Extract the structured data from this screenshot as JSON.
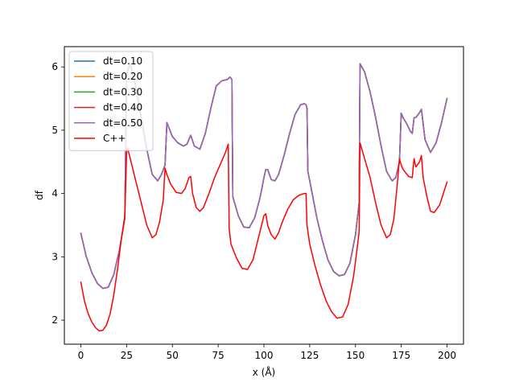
{
  "chart_data": {
    "type": "line",
    "title": "",
    "xlabel": "x (Å)",
    "ylabel": "df",
    "xlim": [
      -9,
      209
    ],
    "ylim": [
      1.62,
      6.32
    ],
    "xticks": [
      0,
      25,
      50,
      75,
      100,
      125,
      150,
      175,
      200
    ],
    "yticks": [
      2,
      3,
      4,
      5,
      6
    ],
    "grid": false,
    "legend_position": "top-left",
    "series": [
      {
        "name": "dt=0.10",
        "color": "#1f77b4",
        "x": [
          0,
          3,
          6,
          9,
          12,
          15,
          18,
          21,
          24,
          25,
          27,
          30,
          33,
          36,
          39,
          42,
          44,
          46,
          47,
          50,
          53,
          56,
          58,
          60,
          62,
          65,
          68,
          71,
          74,
          77,
          80,
          81.5,
          82.5,
          83,
          86,
          89,
          92,
          95,
          98,
          100,
          101,
          102,
          103,
          104,
          106,
          108,
          111,
          114,
          117,
          120,
          122,
          123,
          123.5,
          124,
          126,
          129,
          132,
          135,
          138,
          141,
          144,
          147,
          150,
          151,
          152,
          152.5,
          155,
          158,
          161,
          164,
          167,
          170,
          172,
          174,
          175,
          176,
          178,
          180,
          181,
          182,
          183,
          185,
          186,
          188,
          191,
          194,
          197,
          200
        ],
        "y": [
          3.37,
          3.0,
          2.75,
          2.58,
          2.5,
          2.52,
          2.72,
          3.1,
          3.6,
          5.9,
          6.05,
          5.7,
          5.2,
          4.7,
          4.3,
          4.2,
          4.3,
          4.45,
          5.12,
          4.9,
          4.8,
          4.75,
          4.78,
          4.92,
          4.75,
          4.7,
          4.95,
          5.35,
          5.7,
          5.78,
          5.8,
          5.84,
          5.8,
          3.95,
          3.65,
          3.47,
          3.46,
          3.62,
          3.95,
          4.25,
          4.38,
          4.38,
          4.3,
          4.22,
          4.2,
          4.3,
          4.6,
          4.95,
          5.25,
          5.4,
          5.42,
          5.4,
          5.35,
          4.35,
          4.05,
          3.6,
          3.25,
          2.95,
          2.77,
          2.7,
          2.72,
          2.9,
          3.35,
          3.6,
          3.85,
          6.05,
          5.92,
          5.6,
          5.2,
          4.75,
          4.35,
          4.2,
          4.25,
          4.5,
          5.27,
          5.2,
          5.1,
          4.98,
          4.95,
          5.2,
          5.2,
          5.28,
          5.33,
          4.85,
          4.65,
          4.8,
          5.12,
          5.5
        ]
      },
      {
        "name": "dt=0.20",
        "color": "#ff7f0e",
        "x": [
          0,
          3,
          6,
          9,
          12,
          15,
          18,
          21,
          24,
          25,
          27,
          30,
          33,
          36,
          39,
          42,
          44,
          46,
          47,
          50,
          53,
          56,
          58,
          60,
          62,
          65,
          68,
          71,
          74,
          77,
          80,
          81.5,
          82.5,
          83,
          86,
          89,
          92,
          95,
          98,
          100,
          101,
          102,
          103,
          104,
          106,
          108,
          111,
          114,
          117,
          120,
          122,
          123,
          123.5,
          124,
          126,
          129,
          132,
          135,
          138,
          141,
          144,
          147,
          150,
          151,
          152,
          152.5,
          155,
          158,
          161,
          164,
          167,
          170,
          172,
          174,
          175,
          176,
          178,
          180,
          181,
          182,
          183,
          185,
          186,
          188,
          191,
          194,
          197,
          200
        ],
        "y": [
          3.37,
          3.0,
          2.75,
          2.58,
          2.5,
          2.52,
          2.72,
          3.1,
          3.6,
          5.9,
          6.05,
          5.7,
          5.2,
          4.7,
          4.3,
          4.2,
          4.3,
          4.45,
          5.12,
          4.9,
          4.8,
          4.75,
          4.78,
          4.92,
          4.75,
          4.7,
          4.95,
          5.35,
          5.7,
          5.78,
          5.8,
          5.84,
          5.8,
          3.95,
          3.65,
          3.47,
          3.46,
          3.62,
          3.95,
          4.25,
          4.38,
          4.38,
          4.3,
          4.22,
          4.2,
          4.3,
          4.6,
          4.95,
          5.25,
          5.4,
          5.42,
          5.4,
          5.35,
          4.35,
          4.05,
          3.6,
          3.25,
          2.95,
          2.77,
          2.7,
          2.72,
          2.9,
          3.35,
          3.6,
          3.85,
          6.05,
          5.92,
          5.6,
          5.2,
          4.75,
          4.35,
          4.2,
          4.25,
          4.5,
          5.27,
          5.2,
          5.1,
          4.98,
          4.95,
          5.2,
          5.2,
          5.28,
          5.33,
          4.85,
          4.65,
          4.8,
          5.12,
          5.5
        ]
      },
      {
        "name": "dt=0.30",
        "color": "#2ca02c",
        "x": [
          0,
          3,
          6,
          9,
          12,
          15,
          18,
          21,
          24,
          25,
          27,
          30,
          33,
          36,
          39,
          42,
          44,
          46,
          47,
          50,
          53,
          56,
          58,
          60,
          62,
          65,
          68,
          71,
          74,
          77,
          80,
          81.5,
          82.5,
          83,
          86,
          89,
          92,
          95,
          98,
          100,
          101,
          102,
          103,
          104,
          106,
          108,
          111,
          114,
          117,
          120,
          122,
          123,
          123.5,
          124,
          126,
          129,
          132,
          135,
          138,
          141,
          144,
          147,
          150,
          151,
          152,
          152.5,
          155,
          158,
          161,
          164,
          167,
          170,
          172,
          174,
          175,
          176,
          178,
          180,
          181,
          182,
          183,
          185,
          186,
          188,
          191,
          194,
          197,
          200
        ],
        "y": [
          3.37,
          3.0,
          2.75,
          2.58,
          2.5,
          2.52,
          2.72,
          3.1,
          3.6,
          5.9,
          6.05,
          5.7,
          5.2,
          4.7,
          4.3,
          4.2,
          4.3,
          4.45,
          5.12,
          4.9,
          4.8,
          4.75,
          4.78,
          4.92,
          4.75,
          4.7,
          4.95,
          5.35,
          5.7,
          5.78,
          5.8,
          5.84,
          5.8,
          3.95,
          3.65,
          3.47,
          3.46,
          3.62,
          3.95,
          4.25,
          4.38,
          4.38,
          4.3,
          4.22,
          4.2,
          4.3,
          4.6,
          4.95,
          5.25,
          5.4,
          5.42,
          5.4,
          5.35,
          4.35,
          4.05,
          3.6,
          3.25,
          2.95,
          2.77,
          2.7,
          2.72,
          2.9,
          3.35,
          3.6,
          3.85,
          6.05,
          5.92,
          5.6,
          5.2,
          4.75,
          4.35,
          4.2,
          4.25,
          4.5,
          5.27,
          5.2,
          5.1,
          4.98,
          4.95,
          5.2,
          5.2,
          5.28,
          5.33,
          4.85,
          4.65,
          4.8,
          5.12,
          5.5
        ]
      },
      {
        "name": "dt=0.40",
        "color": "#d62728",
        "x": [
          0,
          3,
          6,
          9,
          12,
          15,
          18,
          21,
          24,
          25,
          27,
          30,
          33,
          36,
          39,
          42,
          44,
          46,
          47,
          50,
          53,
          56,
          58,
          60,
          62,
          65,
          68,
          71,
          74,
          77,
          80,
          81.5,
          82.5,
          83,
          86,
          89,
          92,
          95,
          98,
          100,
          101,
          102,
          103,
          104,
          106,
          108,
          111,
          114,
          117,
          120,
          122,
          123,
          123.5,
          124,
          126,
          129,
          132,
          135,
          138,
          141,
          144,
          147,
          150,
          151,
          152,
          152.5,
          155,
          158,
          161,
          164,
          167,
          170,
          172,
          174,
          175,
          176,
          178,
          180,
          181,
          182,
          183,
          185,
          186,
          188,
          191,
          194,
          197,
          200
        ],
        "y": [
          3.37,
          3.0,
          2.75,
          2.58,
          2.5,
          2.52,
          2.72,
          3.1,
          3.6,
          5.9,
          6.05,
          5.7,
          5.2,
          4.7,
          4.3,
          4.2,
          4.3,
          4.45,
          5.12,
          4.9,
          4.8,
          4.75,
          4.78,
          4.92,
          4.75,
          4.7,
          4.95,
          5.35,
          5.7,
          5.78,
          5.8,
          5.84,
          5.8,
          3.95,
          3.65,
          3.47,
          3.46,
          3.62,
          3.95,
          4.25,
          4.38,
          4.38,
          4.3,
          4.22,
          4.2,
          4.3,
          4.6,
          4.95,
          5.25,
          5.4,
          5.42,
          5.4,
          5.35,
          4.35,
          4.05,
          3.6,
          3.25,
          2.95,
          2.77,
          2.7,
          2.72,
          2.9,
          3.35,
          3.6,
          3.85,
          6.05,
          5.92,
          5.6,
          5.2,
          4.75,
          4.35,
          4.2,
          4.25,
          4.5,
          5.27,
          5.2,
          5.1,
          4.98,
          4.95,
          5.2,
          5.2,
          5.28,
          5.33,
          4.85,
          4.65,
          4.8,
          5.12,
          5.5
        ]
      },
      {
        "name": "dt=0.50",
        "color": "#9467bd",
        "x": [
          0,
          3,
          6,
          9,
          12,
          15,
          18,
          21,
          24,
          25,
          27,
          30,
          33,
          36,
          39,
          42,
          44,
          46,
          47,
          50,
          53,
          56,
          58,
          60,
          62,
          65,
          68,
          71,
          74,
          77,
          80,
          81.5,
          82.5,
          83,
          86,
          89,
          92,
          95,
          98,
          100,
          101,
          102,
          103,
          104,
          106,
          108,
          111,
          114,
          117,
          120,
          122,
          123,
          123.5,
          124,
          126,
          129,
          132,
          135,
          138,
          141,
          144,
          147,
          150,
          151,
          152,
          152.5,
          155,
          158,
          161,
          164,
          167,
          170,
          172,
          174,
          175,
          176,
          178,
          180,
          181,
          182,
          183,
          185,
          186,
          188,
          191,
          194,
          197,
          200
        ],
        "y": [
          3.37,
          3.0,
          2.75,
          2.58,
          2.5,
          2.52,
          2.72,
          3.1,
          3.6,
          5.9,
          6.05,
          5.7,
          5.2,
          4.7,
          4.3,
          4.2,
          4.3,
          4.45,
          5.12,
          4.9,
          4.8,
          4.75,
          4.78,
          4.92,
          4.75,
          4.7,
          4.95,
          5.35,
          5.7,
          5.78,
          5.8,
          5.84,
          5.8,
          3.95,
          3.65,
          3.47,
          3.46,
          3.62,
          3.95,
          4.25,
          4.38,
          4.38,
          4.3,
          4.22,
          4.2,
          4.3,
          4.6,
          4.95,
          5.25,
          5.4,
          5.42,
          5.4,
          5.35,
          4.35,
          4.05,
          3.6,
          3.25,
          2.95,
          2.77,
          2.7,
          2.72,
          2.9,
          3.35,
          3.6,
          3.85,
          6.05,
          5.92,
          5.6,
          5.2,
          4.75,
          4.35,
          4.2,
          4.25,
          4.5,
          5.27,
          5.2,
          5.1,
          4.98,
          4.95,
          5.2,
          5.2,
          5.28,
          5.33,
          4.85,
          4.65,
          4.8,
          5.12,
          5.5
        ]
      },
      {
        "name": "C++",
        "color": "#ff0000",
        "x": [
          0,
          2,
          4,
          6,
          8,
          10,
          12,
          14,
          16,
          18,
          20,
          22,
          24,
          25,
          25.5,
          27,
          30,
          33,
          36,
          39,
          41,
          43,
          45,
          46,
          47,
          49,
          52,
          55,
          57,
          59,
          60,
          61,
          63,
          65,
          67,
          70,
          73,
          76,
          79,
          80.5,
          81,
          82,
          85,
          88,
          91,
          94,
          97,
          100,
          101,
          102,
          104,
          106,
          108,
          110,
          113,
          116,
          119,
          122,
          123,
          123.5,
          125,
          128,
          131,
          134,
          137,
          140,
          143,
          146,
          149,
          151,
          152,
          152.5,
          155,
          158,
          161,
          164,
          167,
          169,
          171,
          173,
          174,
          175,
          176,
          179,
          181,
          182,
          183,
          185,
          186,
          187,
          189,
          191,
          193,
          196,
          200
        ],
        "y": [
          2.6,
          2.3,
          2.1,
          1.97,
          1.88,
          1.83,
          1.84,
          1.92,
          2.1,
          2.4,
          2.8,
          3.25,
          3.65,
          4.65,
          4.72,
          4.55,
          4.2,
          3.85,
          3.5,
          3.3,
          3.35,
          3.55,
          3.9,
          4.4,
          4.3,
          4.15,
          4.02,
          4.0,
          4.08,
          4.25,
          4.27,
          4.0,
          3.78,
          3.72,
          3.78,
          4.0,
          4.25,
          4.45,
          4.65,
          4.78,
          3.45,
          3.2,
          2.98,
          2.82,
          2.8,
          2.95,
          3.3,
          3.65,
          3.68,
          3.5,
          3.35,
          3.28,
          3.38,
          3.55,
          3.75,
          3.9,
          3.97,
          4.0,
          4.0,
          3.5,
          3.2,
          2.85,
          2.55,
          2.3,
          2.13,
          2.03,
          2.05,
          2.25,
          2.7,
          3.15,
          3.4,
          4.8,
          4.55,
          4.25,
          3.85,
          3.5,
          3.3,
          3.35,
          3.6,
          4.2,
          4.55,
          4.45,
          4.38,
          4.27,
          4.25,
          4.55,
          4.42,
          4.5,
          4.6,
          4.25,
          3.95,
          3.72,
          3.7,
          3.82,
          4.18
        ]
      }
    ]
  }
}
